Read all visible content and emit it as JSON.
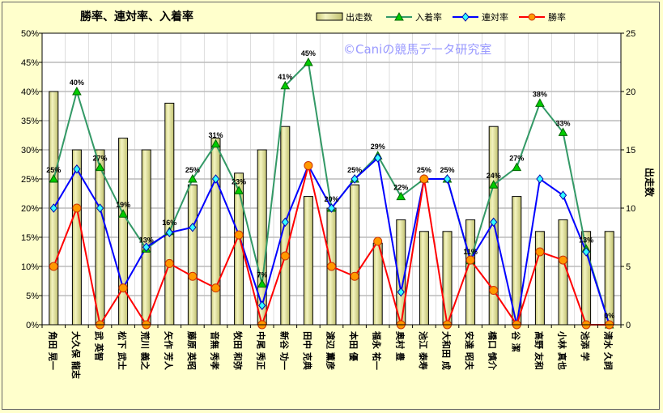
{
  "chart_data": {
    "type": "bar",
    "title": "勝率、連対率、入着率",
    "watermark": "©Caniの競馬データ研究室",
    "y_left": {
      "min": 0,
      "max": 50,
      "step": 5,
      "unit": "%"
    },
    "y_right": {
      "min": 0,
      "max": 25,
      "step": 5,
      "label": "出走数"
    },
    "categories": [
      "角田 晃一",
      "大久保 龍志",
      "武 英智",
      "松下 武士",
      "荒川 義之",
      "矢作 芳人",
      "藤原 英昭",
      "音無 秀孝",
      "牧田 和弥",
      "中尾 秀正",
      "新谷 功一",
      "田中 克典",
      "渡辺 薫彦",
      "本田 優",
      "福永 祐一",
      "奥村 豊",
      "池江 泰寿",
      "大和田 成",
      "安達 昭夫",
      "橋口 慎介",
      "谷 潔",
      "高野 友和",
      "小林 真也",
      "池添 学",
      "清水 久詞"
    ],
    "series": [
      {
        "name": "出走数",
        "kind": "bar",
        "axis": "right",
        "color": "#e6e6a0",
        "values": [
          20,
          15,
          15,
          16,
          15,
          19,
          12,
          16,
          13,
          15,
          17,
          11,
          10,
          12,
          7,
          9,
          8,
          8,
          9,
          17,
          11,
          8,
          9,
          8,
          8
        ]
      },
      {
        "name": "入着率",
        "kind": "line",
        "axis": "left",
        "color": "#339966",
        "values": [
          25,
          40,
          27,
          19,
          13,
          16,
          25,
          31,
          23,
          7,
          41,
          45,
          20,
          25,
          29,
          22,
          25,
          25,
          11,
          24,
          27,
          38,
          33,
          13,
          0
        ]
      },
      {
        "name": "連対率",
        "kind": "line",
        "axis": "left",
        "color": "#0000ff",
        "values": [
          20,
          26.7,
          20,
          6.3,
          13.3,
          15.8,
          16.7,
          25,
          15.4,
          3.3,
          17.6,
          27.3,
          20,
          25,
          28.6,
          5.6,
          25,
          25,
          11.1,
          17.6,
          0,
          25,
          22.2,
          12.5,
          0
        ]
      },
      {
        "name": "勝率",
        "kind": "line",
        "axis": "left",
        "color": "#ff0000",
        "values": [
          10,
          20,
          0,
          6.3,
          0,
          10.5,
          8.3,
          6.3,
          15.4,
          0,
          11.8,
          27.3,
          10,
          8.3,
          14.3,
          0,
          25,
          0,
          11.1,
          5.9,
          0,
          12.5,
          11.1,
          0,
          0
        ]
      }
    ],
    "data_labels": [
      "25%",
      "40%",
      "27%",
      "19%",
      "13%",
      "16%",
      "25%",
      "31%",
      "23%",
      "7%",
      "41%",
      "45%",
      "20%",
      "25%",
      "29%",
      "22%",
      "25%",
      "25%",
      "11%",
      "24%",
      "27%",
      "38%",
      "33%",
      "13%",
      "0%"
    ],
    "legend_position": "top-right",
    "grid": true
  }
}
